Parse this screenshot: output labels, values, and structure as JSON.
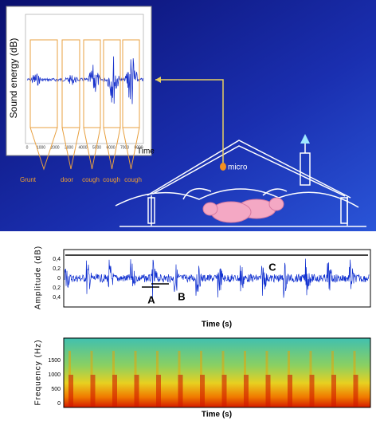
{
  "inset": {
    "y_label": "Sound energy (dB)",
    "x_label": "Time",
    "x_ticks": [
      "0",
      "1000",
      "2000",
      "3000",
      "4000",
      "5000",
      "6000",
      "7000",
      "8000"
    ],
    "segments": [
      "Grunt",
      "door",
      "cough",
      "cough",
      "cough"
    ]
  },
  "barn": {
    "micro_label": "micro"
  },
  "waveform": {
    "y_label": "Amplitude (dB)",
    "y_ticks": [
      "0,4",
      "0,2",
      "0",
      "0,2",
      "0,4"
    ],
    "markers": [
      "A",
      "B",
      "C"
    ],
    "x_label": "Time (s)"
  },
  "spectrogram": {
    "y_label": "Frequency (Hz)",
    "y_ticks": [
      "1500",
      "1000",
      "500",
      "0"
    ],
    "x_label": "Time (s)"
  }
}
